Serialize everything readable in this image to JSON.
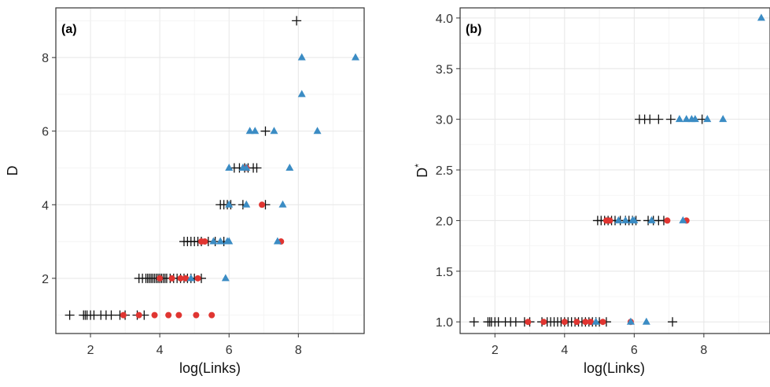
{
  "chart_data": [
    {
      "type": "scatter",
      "panel_label": "(a)",
      "xlabel": "log(Links)",
      "ylabel": "D",
      "ylabel_sup": "",
      "xlim": [
        1.0,
        9.9
      ],
      "ylim": [
        0.5,
        9.35
      ],
      "xticks": [
        2,
        4,
        6,
        8
      ],
      "yticks": [
        2,
        4,
        6,
        8
      ],
      "ytick_labels": [
        "2",
        "4",
        "6",
        "8"
      ],
      "grid": true,
      "series": [
        {
          "marker": "plus",
          "color": "#111111",
          "points": [
            [
              1.4,
              1
            ],
            [
              1.8,
              1
            ],
            [
              1.85,
              1
            ],
            [
              1.9,
              1
            ],
            [
              2.0,
              1
            ],
            [
              2.1,
              1
            ],
            [
              2.3,
              1
            ],
            [
              2.45,
              1
            ],
            [
              2.6,
              1
            ],
            [
              2.85,
              1
            ],
            [
              3.0,
              1
            ],
            [
              3.35,
              1
            ],
            [
              3.55,
              1
            ],
            [
              3.4,
              2
            ],
            [
              3.5,
              2
            ],
            [
              3.6,
              2
            ],
            [
              3.65,
              2
            ],
            [
              3.7,
              2
            ],
            [
              3.75,
              2
            ],
            [
              3.8,
              2
            ],
            [
              3.85,
              2
            ],
            [
              3.9,
              2
            ],
            [
              3.95,
              2
            ],
            [
              4.0,
              2
            ],
            [
              4.05,
              2
            ],
            [
              4.1,
              2
            ],
            [
              4.15,
              2
            ],
            [
              4.2,
              2
            ],
            [
              4.3,
              2
            ],
            [
              4.4,
              2
            ],
            [
              4.5,
              2
            ],
            [
              4.6,
              2
            ],
            [
              4.7,
              2
            ],
            [
              4.8,
              2
            ],
            [
              4.9,
              2
            ],
            [
              5.0,
              2
            ],
            [
              5.2,
              2
            ],
            [
              4.7,
              3
            ],
            [
              4.8,
              3
            ],
            [
              4.9,
              3
            ],
            [
              5.0,
              3
            ],
            [
              5.1,
              3
            ],
            [
              5.2,
              3
            ],
            [
              5.4,
              3
            ],
            [
              5.6,
              3
            ],
            [
              5.85,
              3
            ],
            [
              5.75,
              4
            ],
            [
              5.85,
              4
            ],
            [
              5.95,
              4
            ],
            [
              6.05,
              4
            ],
            [
              6.4,
              4
            ],
            [
              6.15,
              5
            ],
            [
              6.3,
              5
            ],
            [
              6.45,
              5
            ],
            [
              6.55,
              5
            ],
            [
              6.7,
              5
            ],
            [
              6.8,
              5
            ],
            [
              7.05,
              6
            ],
            [
              7.05,
              4
            ],
            [
              7.95,
              9
            ]
          ]
        },
        {
          "marker": "circle",
          "color": "#e03531",
          "points": [
            [
              2.95,
              1
            ],
            [
              3.4,
              1
            ],
            [
              3.85,
              1
            ],
            [
              4.25,
              1
            ],
            [
              4.55,
              1
            ],
            [
              5.05,
              1
            ],
            [
              5.5,
              1
            ],
            [
              4.0,
              2
            ],
            [
              4.35,
              2
            ],
            [
              4.6,
              2
            ],
            [
              4.75,
              2
            ],
            [
              5.1,
              2
            ],
            [
              5.2,
              3
            ],
            [
              5.3,
              3
            ],
            [
              7.5,
              3
            ],
            [
              6.95,
              4
            ],
            [
              6.5,
              5
            ]
          ]
        },
        {
          "marker": "triangle",
          "color": "#3b8cc4",
          "points": [
            [
              4.9,
              2
            ],
            [
              5.9,
              2
            ],
            [
              5.55,
              3
            ],
            [
              5.75,
              3
            ],
            [
              5.95,
              3
            ],
            [
              6.0,
              3
            ],
            [
              7.4,
              3
            ],
            [
              6.0,
              4
            ],
            [
              6.5,
              4
            ],
            [
              7.55,
              4
            ],
            [
              6.0,
              5
            ],
            [
              6.4,
              5
            ],
            [
              6.5,
              5
            ],
            [
              7.75,
              5
            ],
            [
              6.6,
              6
            ],
            [
              6.75,
              6
            ],
            [
              7.3,
              6
            ],
            [
              8.55,
              6
            ],
            [
              8.1,
              7
            ],
            [
              8.1,
              8
            ],
            [
              9.65,
              8
            ]
          ]
        }
      ]
    },
    {
      "type": "scatter",
      "panel_label": "(b)",
      "xlabel": "log(Links)",
      "ylabel": "D",
      "ylabel_sup": "*",
      "xlim": [
        1.0,
        9.9
      ],
      "ylim": [
        0.885,
        4.1
      ],
      "xticks": [
        2,
        4,
        6,
        8
      ],
      "yticks": [
        1.0,
        1.5,
        2.0,
        2.5,
        3.0,
        3.5,
        4.0
      ],
      "ytick_labels": [
        "1.0",
        "1.5",
        "2.0",
        "2.5",
        "3.0",
        "3.5",
        "4.0"
      ],
      "grid": true,
      "series": [
        {
          "marker": "plus",
          "color": "#111111",
          "points": [
            [
              1.4,
              1
            ],
            [
              1.8,
              1
            ],
            [
              1.85,
              1
            ],
            [
              1.9,
              1
            ],
            [
              2.0,
              1
            ],
            [
              2.1,
              1
            ],
            [
              2.3,
              1
            ],
            [
              2.45,
              1
            ],
            [
              2.6,
              1
            ],
            [
              2.85,
              1
            ],
            [
              3.0,
              1
            ],
            [
              3.35,
              1
            ],
            [
              3.5,
              1
            ],
            [
              3.6,
              1
            ],
            [
              3.7,
              1
            ],
            [
              3.8,
              1
            ],
            [
              3.9,
              1
            ],
            [
              4.0,
              1
            ],
            [
              4.1,
              1
            ],
            [
              4.2,
              1
            ],
            [
              4.3,
              1
            ],
            [
              4.4,
              1
            ],
            [
              4.5,
              1
            ],
            [
              4.6,
              1
            ],
            [
              4.7,
              1
            ],
            [
              4.8,
              1
            ],
            [
              4.9,
              1
            ],
            [
              5.0,
              1
            ],
            [
              5.2,
              1
            ],
            [
              7.1,
              1
            ],
            [
              4.95,
              2
            ],
            [
              5.05,
              2
            ],
            [
              5.15,
              2
            ],
            [
              5.25,
              2
            ],
            [
              5.35,
              2
            ],
            [
              5.45,
              2
            ],
            [
              5.6,
              2
            ],
            [
              5.75,
              2
            ],
            [
              5.85,
              2
            ],
            [
              5.95,
              2
            ],
            [
              6.05,
              2
            ],
            [
              6.4,
              2
            ],
            [
              6.55,
              2
            ],
            [
              6.7,
              2
            ],
            [
              6.85,
              2
            ],
            [
              6.15,
              3
            ],
            [
              6.3,
              3
            ],
            [
              6.45,
              3
            ],
            [
              6.7,
              3
            ],
            [
              7.05,
              3
            ],
            [
              7.95,
              3
            ]
          ]
        },
        {
          "marker": "circle",
          "color": "#e03531",
          "points": [
            [
              2.95,
              1
            ],
            [
              3.4,
              1
            ],
            [
              4.0,
              1
            ],
            [
              4.35,
              1
            ],
            [
              4.6,
              1
            ],
            [
              4.75,
              1
            ],
            [
              5.1,
              1
            ],
            [
              5.9,
              1
            ],
            [
              5.2,
              2
            ],
            [
              5.3,
              2
            ],
            [
              6.95,
              2
            ],
            [
              7.5,
              2
            ]
          ]
        },
        {
          "marker": "triangle",
          "color": "#3b8cc4",
          "points": [
            [
              4.9,
              1
            ],
            [
              5.9,
              1
            ],
            [
              6.35,
              1
            ],
            [
              5.55,
              2
            ],
            [
              5.75,
              2
            ],
            [
              5.95,
              2
            ],
            [
              6.0,
              2
            ],
            [
              6.5,
              2
            ],
            [
              7.4,
              2
            ],
            [
              7.3,
              3
            ],
            [
              7.5,
              3
            ],
            [
              7.65,
              3
            ],
            [
              7.75,
              3
            ],
            [
              8.1,
              3
            ],
            [
              8.55,
              3
            ],
            [
              9.65,
              4
            ]
          ]
        }
      ]
    }
  ]
}
